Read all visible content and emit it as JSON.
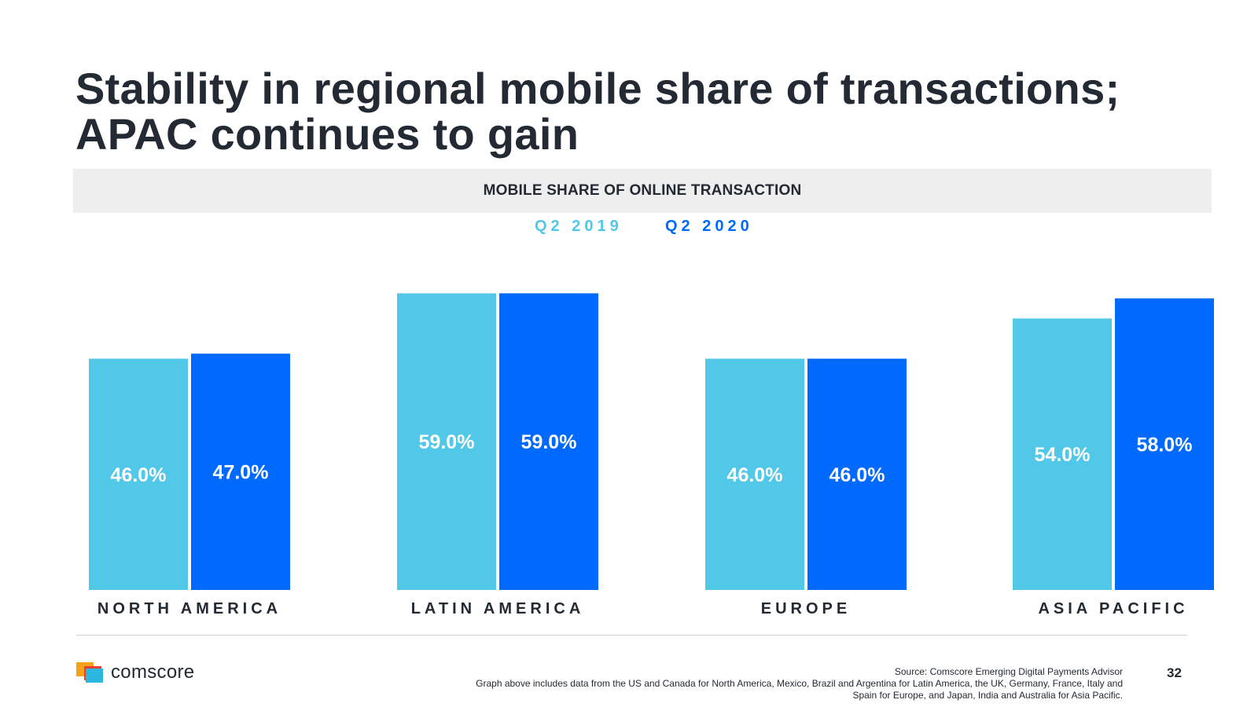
{
  "slide": {
    "title": "Stability in regional mobile share of transactions; APAC continues to gain",
    "chart_header": "MOBILE SHARE OF ONLINE TRANSACTION",
    "page_number": "32",
    "source_line1": "Source: Comscore Emerging Digital Payments Advisor",
    "source_line2": "Graph above includes data from the US and Canada for North America, Mexico, Brazil and Argentina for Latin America, the UK, Germany, France, Italy and",
    "source_line3": "Spain for Europe, and Japan, India and Australia for Asia Pacific.",
    "brand": "comscore"
  },
  "colors": {
    "q2_2019": "#52c8e9",
    "q2_2020": "#0069fe"
  },
  "chart_data": {
    "type": "bar",
    "title": "MOBILE SHARE OF ONLINE TRANSACTION",
    "categories": [
      "NORTH AMERICA",
      "LATIN AMERICA",
      "EUROPE",
      "ASIA PACIFIC"
    ],
    "series": [
      {
        "name": "Q2 2019",
        "values": [
          46.0,
          59.0,
          46.0,
          54.0
        ],
        "labels": [
          "46.0%",
          "59.0%",
          "46.0%",
          "54.0%"
        ]
      },
      {
        "name": "Q2 2020",
        "values": [
          47.0,
          59.0,
          46.0,
          58.0
        ],
        "labels": [
          "47.0%",
          "59.0%",
          "46.0%",
          "58.0%"
        ]
      }
    ],
    "ylabel": "",
    "xlabel": "",
    "legend": "top-center",
    "grid": false
  }
}
